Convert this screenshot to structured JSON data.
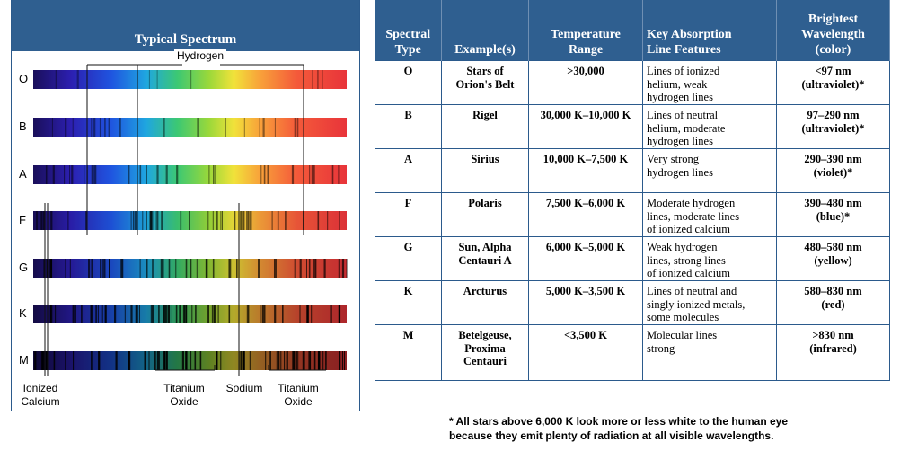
{
  "left": {
    "title": "Typical Spectrum",
    "types": [
      "O",
      "B",
      "A",
      "F",
      "G",
      "K",
      "M"
    ],
    "hydrogen_label": "Hydrogen",
    "captions": {
      "ionized_calcium": [
        "Ionized",
        "Calcium"
      ],
      "titanium_oxide_1": [
        "Titanium",
        "Oxide"
      ],
      "sodium": [
        "Sodium"
      ],
      "titanium_oxide_2": [
        "Titanium",
        "Oxide"
      ]
    }
  },
  "table": {
    "headers": {
      "type": [
        "Spectral",
        "Type"
      ],
      "examples": [
        "Example(s)"
      ],
      "temperature": [
        "Temperature",
        "Range"
      ],
      "features": [
        "Key Absorption",
        "Line Features"
      ],
      "wavelength": [
        "Brightest",
        "Wavelength",
        "(color)"
      ]
    },
    "rows": [
      {
        "type": "O",
        "examples": [
          "Stars of",
          "Orion's Belt"
        ],
        "temperature": ">30,000",
        "features": [
          "Lines of ionized",
          "helium, weak",
          "hydrogen lines"
        ],
        "wavelength": [
          "<97 nm",
          "(ultraviolet)*"
        ]
      },
      {
        "type": "B",
        "examples": [
          "Rigel"
        ],
        "temperature": "30,000 K–10,000 K",
        "features": [
          "Lines of neutral",
          "helium, moderate",
          "hydrogen lines"
        ],
        "wavelength": [
          "97–290 nm",
          "(ultraviolet)*"
        ]
      },
      {
        "type": "A",
        "examples": [
          "Sirius"
        ],
        "temperature": "10,000 K–7,500 K",
        "features": [
          "Very strong",
          "hydrogen lines"
        ],
        "wavelength": [
          "290–390 nm",
          "(violet)*"
        ]
      },
      {
        "type": "F",
        "examples": [
          "Polaris"
        ],
        "temperature": "7,500 K–6,000 K",
        "features": [
          "Moderate hydrogen",
          "lines, moderate lines",
          "of ionized calcium"
        ],
        "wavelength": [
          "390–480 nm",
          "(blue)*"
        ]
      },
      {
        "type": "G",
        "examples": [
          "Sun, Alpha",
          "Centauri A"
        ],
        "temperature": "6,000 K–5,000 K",
        "features": [
          "Weak hydrogen",
          "lines, strong lines",
          "of ionized calcium"
        ],
        "wavelength": [
          "480–580 nm",
          "(yellow)"
        ]
      },
      {
        "type": "K",
        "examples": [
          "Arcturus"
        ],
        "temperature": "5,000 K–3,500 K",
        "features": [
          "Lines of neutral and",
          "singly ionized metals,",
          "some molecules"
        ],
        "wavelength": [
          "580–830 nm",
          "(red)"
        ]
      },
      {
        "type": "M",
        "examples": [
          "Betelgeuse,",
          "Proxima",
          "Centauri"
        ],
        "temperature": "<3,500 K",
        "features": [
          "Molecular lines",
          "strong"
        ],
        "wavelength": [
          ">830 nm",
          "(infrared)"
        ]
      }
    ]
  },
  "footnote": [
    "* All stars above 6,000 K look more or less white to the human eye",
    "because they emit plenty of  radiation at all visible wavelengths."
  ],
  "colors": {
    "header_blue": "#2f5f90",
    "border_blue": "#2b5a8c"
  }
}
